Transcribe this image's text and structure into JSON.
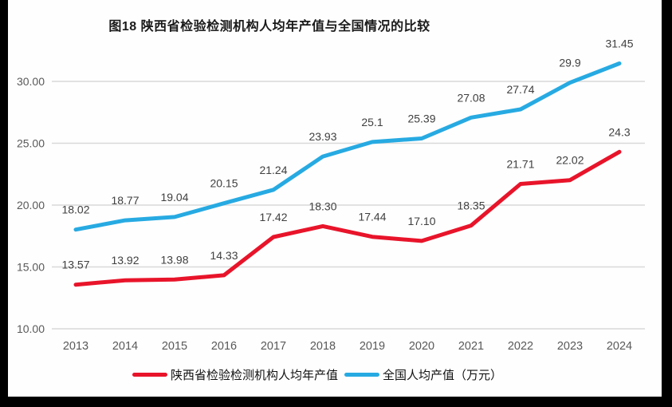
{
  "title": "图18 陕西省检验检测机构人均年产值与全国情况的比较",
  "chart_data": {
    "type": "line",
    "categories": [
      "2013",
      "2014",
      "2015",
      "2016",
      "2017",
      "2018",
      "2019",
      "2020",
      "2021",
      "2022",
      "2023",
      "2024"
    ],
    "series": [
      {
        "name": "陕西省检验检测机构人均年产值",
        "color": "#e8142a",
        "values": [
          13.57,
          13.92,
          13.98,
          14.33,
          17.42,
          18.3,
          17.44,
          17.1,
          18.35,
          21.71,
          22.02,
          24.3
        ],
        "point_labels": [
          "13.57",
          "13.92",
          "13.98",
          "14.33",
          "17.42",
          "18.30",
          "17.44",
          "17.10",
          "18.35",
          "21.71",
          "22.02",
          "24.3"
        ]
      },
      {
        "name": "全国人均产值（万元）",
        "color": "#27aae2",
        "values": [
          18.02,
          18.77,
          19.04,
          20.15,
          21.24,
          23.93,
          25.1,
          25.39,
          27.08,
          27.74,
          29.9,
          31.45
        ],
        "point_labels": [
          "18.02",
          "18.77",
          "19.04",
          "20.15",
          "21.24",
          "23.93",
          "25.1",
          "25.39",
          "27.08",
          "27.74",
          "29.9",
          "31.45"
        ]
      }
    ],
    "xlabel": "",
    "ylabel": "",
    "ylim": [
      10,
      32.5
    ],
    "ytick_labels": [
      "10.00",
      "15.00",
      "20.00",
      "25.00",
      "30.00"
    ],
    "grid": true,
    "legend_position": "bottom",
    "colors": {
      "grid": "#d9d9d9",
      "tick_label": "#595959",
      "data_label": "#404040"
    }
  }
}
